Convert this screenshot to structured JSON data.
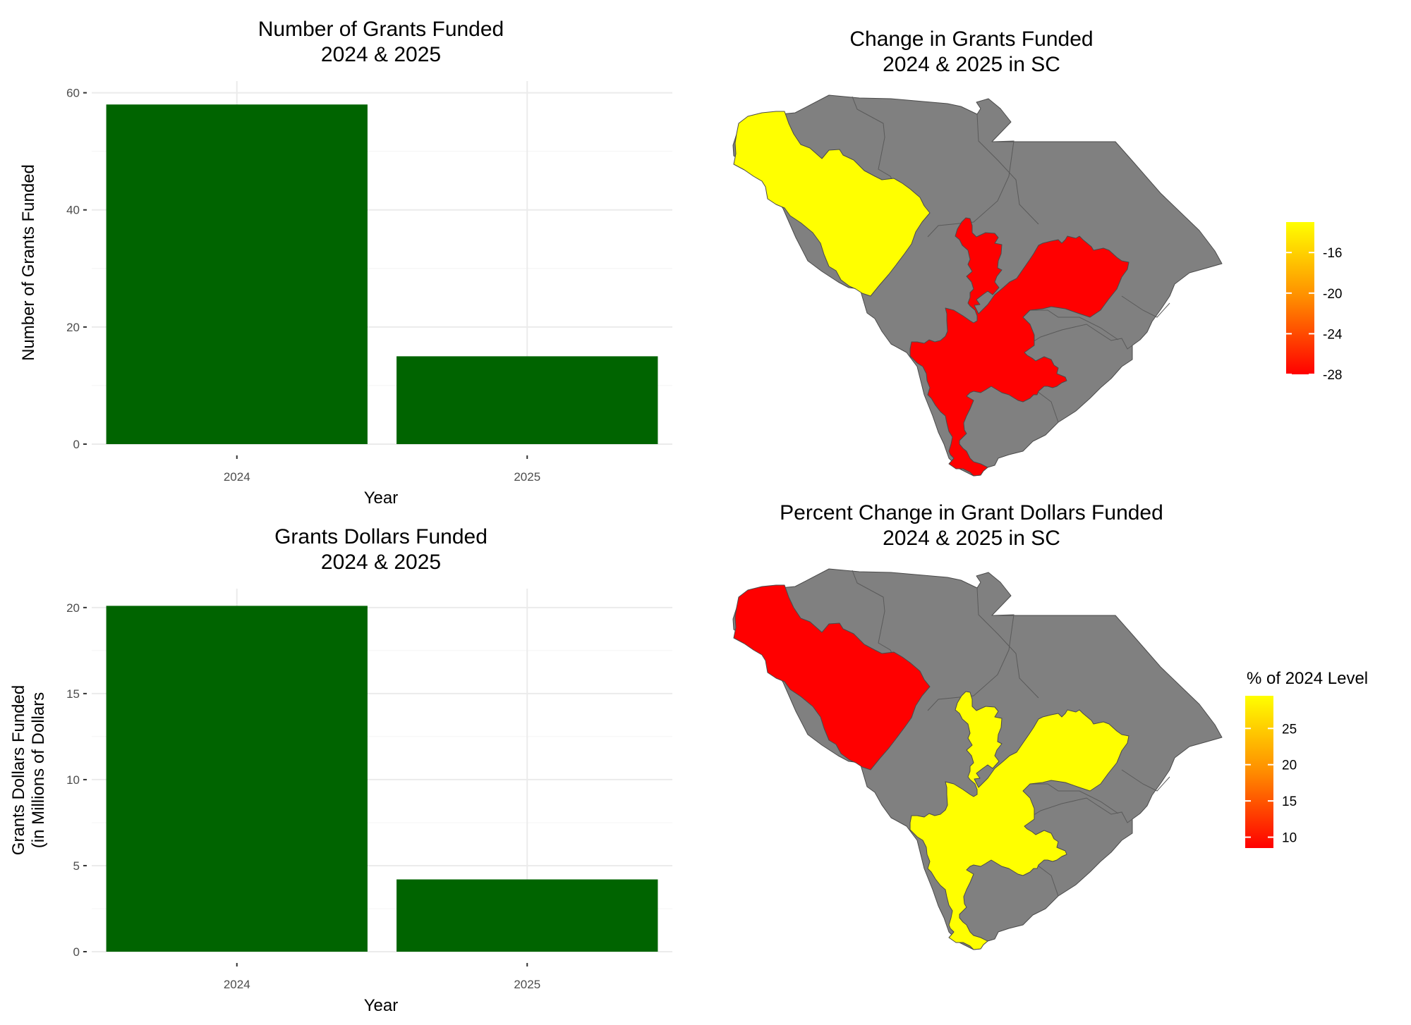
{
  "chart_data": [
    {
      "type": "bar",
      "title": "Number of Grants Funded\n2024 & 2025",
      "categories": [
        "2024",
        "2025"
      ],
      "values": [
        58,
        15
      ],
      "xlabel": "Year",
      "ylabel": "Number of Grants Funded",
      "ylim": [
        0,
        62
      ],
      "yticks": [
        0,
        20,
        40,
        60
      ],
      "bar_color": "#006400",
      "grid": true
    },
    {
      "type": "map",
      "title": "Change in Grants Funded\n2024 & 2025 in SC",
      "region": "South Carolina",
      "regions": [
        {
          "name": "northwest region",
          "value": -13,
          "color": "#FFFF00"
        },
        {
          "name": "central region",
          "value": -28,
          "color": "#FF0000"
        },
        {
          "name": "other regions",
          "value": null,
          "color": "#808080"
        }
      ],
      "legend": {
        "title": "",
        "min": -28,
        "max": -13,
        "ticks": [
          "-16",
          "-20",
          "-24",
          "-28"
        ],
        "tick_values": [
          -16,
          -20,
          -24,
          -28
        ],
        "low_color": "#FF0000",
        "high_color": "#FFFF00",
        "placement": "right"
      }
    },
    {
      "type": "bar",
      "title": "Grants Dollars Funded\n2024 & 2025",
      "categories": [
        "2024",
        "2025"
      ],
      "values": [
        20.1,
        4.2
      ],
      "xlabel": "Year",
      "ylabel": "Grants Dollars Funded\n(in Millions of Dollars",
      "ylim": [
        0,
        21.1
      ],
      "yticks": [
        0,
        5,
        10,
        15,
        20
      ],
      "bar_color": "#006400",
      "grid": true
    },
    {
      "type": "map",
      "title": "Percent Change in Grant Dollars Funded\n2024 & 2025 in SC",
      "region": "South Carolina",
      "regions": [
        {
          "name": "northwest region",
          "value": 8.5,
          "color": "#FF0000"
        },
        {
          "name": "central region",
          "value": 29.5,
          "color": "#FFFF00"
        },
        {
          "name": "other regions",
          "value": null,
          "color": "#808080"
        }
      ],
      "legend": {
        "title": "% of 2024 Level",
        "min": 8.5,
        "max": 29.5,
        "ticks": [
          "25",
          "20",
          "15",
          "10"
        ],
        "tick_values": [
          25,
          20,
          15,
          10
        ],
        "low_color": "#FF0000",
        "high_color": "#FFFF00",
        "placement": "right"
      }
    }
  ]
}
